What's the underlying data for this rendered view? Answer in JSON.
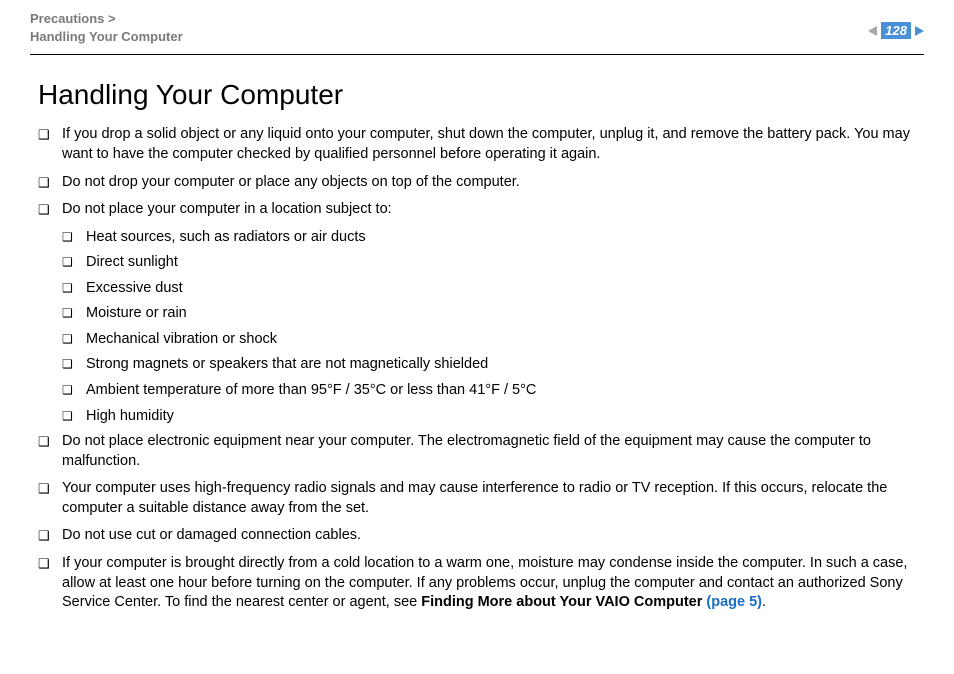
{
  "header": {
    "breadcrumb_section": "Precautions >",
    "breadcrumb_page": "Handling Your Computer",
    "page_number": "128"
  },
  "title": "Handling Your Computer",
  "items": [
    {
      "text": "If you drop a solid object or any liquid onto your computer, shut down the computer, unplug it, and remove the battery pack. You may want to have the computer checked by qualified personnel before operating it again."
    },
    {
      "text": "Do not drop your computer or place any objects on top of the computer."
    },
    {
      "text": "Do not place your computer in a location subject to:",
      "sub": [
        "Heat sources, such as radiators or air ducts",
        "Direct sunlight",
        "Excessive dust",
        "Moisture or rain",
        "Mechanical vibration or shock",
        "Strong magnets or speakers that are not magnetically shielded",
        "Ambient temperature of more than 95°F / 35°C or less than 41°F / 5°C",
        "High humidity"
      ]
    },
    {
      "text": "Do not place electronic equipment near your computer. The electromagnetic field of the equipment may cause the computer to malfunction."
    },
    {
      "text": "Your computer uses high-frequency radio signals and may cause interference to radio or TV reception. If this occurs, relocate the computer a suitable distance away from the set."
    },
    {
      "text": "Do not use cut or damaged connection cables."
    },
    {
      "text_pre": "If your computer is brought directly from a cold location to a warm one, moisture may condense inside the computer. In such a case, allow at least one hour before turning on the computer. If any problems occur, unplug the computer and contact an authorized Sony Service Center. To find the nearest center or agent, see ",
      "bold_ref": "Finding More about Your VAIO Computer ",
      "link_text": "(page 5)",
      "text_post": "."
    }
  ]
}
